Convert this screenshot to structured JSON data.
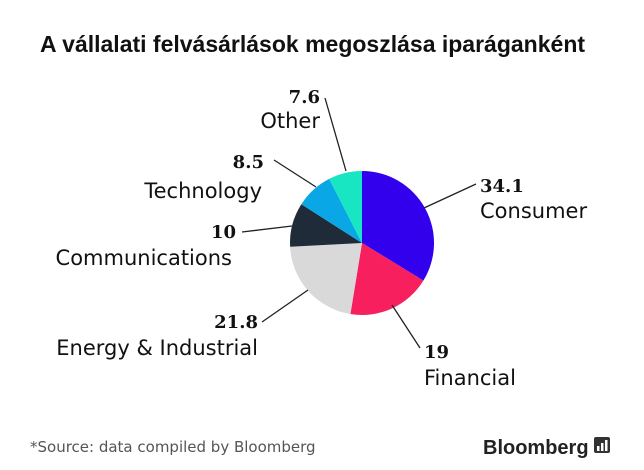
{
  "chart_data": {
    "type": "pie",
    "title": "A vállalati felvásárlások megoszlása iparáganként",
    "slices": [
      {
        "label": "Consumer",
        "value": 34.1,
        "value_text": "34.1",
        "color": "#3300ee"
      },
      {
        "label": "Financial",
        "value": 19,
        "value_text": "19",
        "color": "#f71f5e"
      },
      {
        "label": "Energy & Industrial",
        "value": 21.8,
        "value_text": "21.8",
        "color": "#d9d9d9"
      },
      {
        "label": "Communications",
        "value": 10,
        "value_text": "10",
        "color": "#1f2b38"
      },
      {
        "label": "Technology",
        "value": 8.5,
        "value_text": "8.5",
        "color": "#0aa7e6"
      },
      {
        "label": "Other",
        "value": 7.6,
        "value_text": "7.6",
        "color": "#18e6c2"
      }
    ],
    "start_position": "top",
    "direction": "clockwise"
  },
  "footer": {
    "source": "*Source: data compiled by Bloomberg",
    "brand": "Bloomberg",
    "brand_icon": "bar-chart-icon"
  }
}
